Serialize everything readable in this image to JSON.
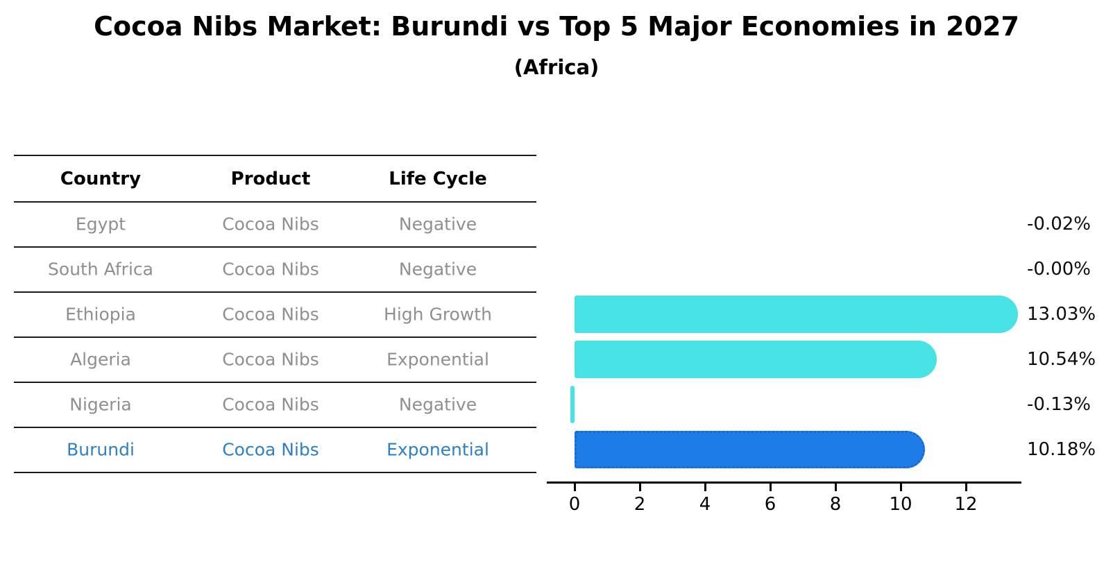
{
  "title": "Cocoa Nibs Market: Burundi vs Top 5 Major Economies in 2027",
  "subtitle": "(Africa)",
  "table": {
    "headers": [
      "Country",
      "Product",
      "Life Cycle"
    ]
  },
  "chart_data": {
    "type": "bar",
    "orientation": "horizontal",
    "title": "Cocoa Nibs Market: Burundi vs Top 5 Major Economies in 2027",
    "subtitle": "(Africa)",
    "categories": [
      "Egypt",
      "South Africa",
      "Ethiopia",
      "Algeria",
      "Nigeria",
      "Burundi"
    ],
    "products": [
      "Cocoa Nibs",
      "Cocoa Nibs",
      "Cocoa Nibs",
      "Cocoa Nibs",
      "Cocoa Nibs",
      "Cocoa Nibs"
    ],
    "life_cycles": [
      "Negative",
      "Negative",
      "High Growth",
      "Exponential",
      "Negative",
      "Exponential"
    ],
    "values": [
      -0.02,
      -0.0,
      13.03,
      10.54,
      -0.13,
      10.18
    ],
    "value_labels": [
      "-0.02%",
      "-0.00%",
      "13.03%",
      "10.54%",
      "-0.13%",
      "10.18%"
    ],
    "highlight_index": 5,
    "xticks": [
      "0",
      "2",
      "4",
      "6",
      "8",
      "10",
      "12"
    ],
    "xtick_values": [
      0,
      2,
      4,
      6,
      8,
      10,
      12
    ],
    "xlim": [
      -0.85,
      13.7
    ],
    "grid": false,
    "legend": "none",
    "xlabel": "",
    "ylabel": ""
  },
  "colors": {
    "bar_default": "#47e3e4",
    "bar_highlight": "#1e7ce8",
    "highlight_text": "#2f80c3",
    "table_text": "#8f8f8f",
    "header_text": "#000000",
    "axis": "#000000"
  }
}
